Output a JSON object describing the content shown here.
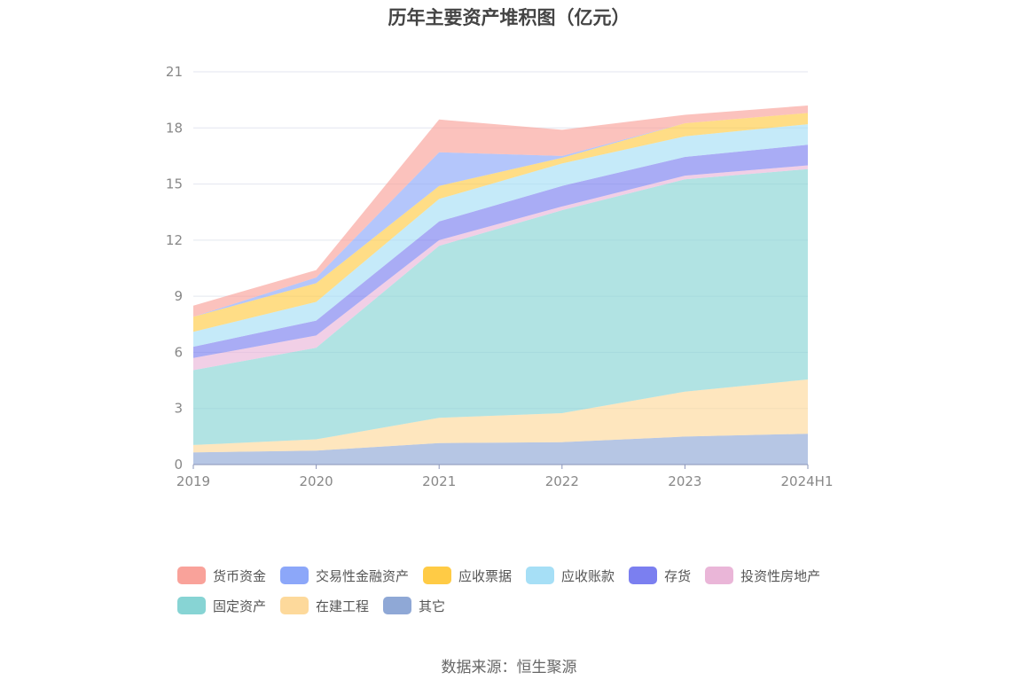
{
  "chart_data": {
    "type": "area",
    "title": "历年主要资产堆积图（亿元）",
    "xlabel": "",
    "ylabel": "",
    "categories": [
      "2019",
      "2020",
      "2021",
      "2022",
      "2023",
      "2024H1"
    ],
    "ylim": [
      0,
      21
    ],
    "yticks": [
      0,
      3,
      6,
      9,
      12,
      15,
      18,
      21
    ],
    "grid": true,
    "legend_position": "bottom",
    "stacked": true,
    "series": [
      {
        "name": "其它",
        "color": "#8fa8d6",
        "values": [
          0.65,
          0.75,
          1.15,
          1.2,
          1.5,
          1.65
        ]
      },
      {
        "name": "在建工程",
        "color": "#fdd99b",
        "values": [
          0.4,
          0.6,
          1.35,
          1.55,
          2.4,
          2.9
        ]
      },
      {
        "name": "固定资产",
        "color": "#87d4d4",
        "values": [
          4.0,
          4.9,
          9.2,
          10.85,
          11.35,
          11.25
        ]
      },
      {
        "name": "投资性房地产",
        "color": "#eab6d8",
        "values": [
          0.65,
          0.65,
          0.3,
          0.2,
          0.2,
          0.2
        ]
      },
      {
        "name": "存货",
        "color": "#7b7ff0",
        "values": [
          0.6,
          0.8,
          1.0,
          1.1,
          1.0,
          1.1
        ]
      },
      {
        "name": "应收账款",
        "color": "#a6dff6",
        "values": [
          0.8,
          1.0,
          1.2,
          1.2,
          1.1,
          1.1
        ]
      },
      {
        "name": "应收票据",
        "color": "#ffcb45",
        "values": [
          0.8,
          1.0,
          0.7,
          0.3,
          0.7,
          0.6
        ]
      },
      {
        "name": "交易性金融资产",
        "color": "#8ca7f9",
        "values": [
          0.0,
          0.3,
          1.8,
          0.1,
          0.0,
          0.0
        ]
      },
      {
        "name": "货币资金",
        "color": "#f9a29a",
        "values": [
          0.6,
          0.4,
          1.75,
          1.4,
          0.45,
          0.4
        ]
      }
    ]
  },
  "source_text": "数据来源：恒生聚源"
}
